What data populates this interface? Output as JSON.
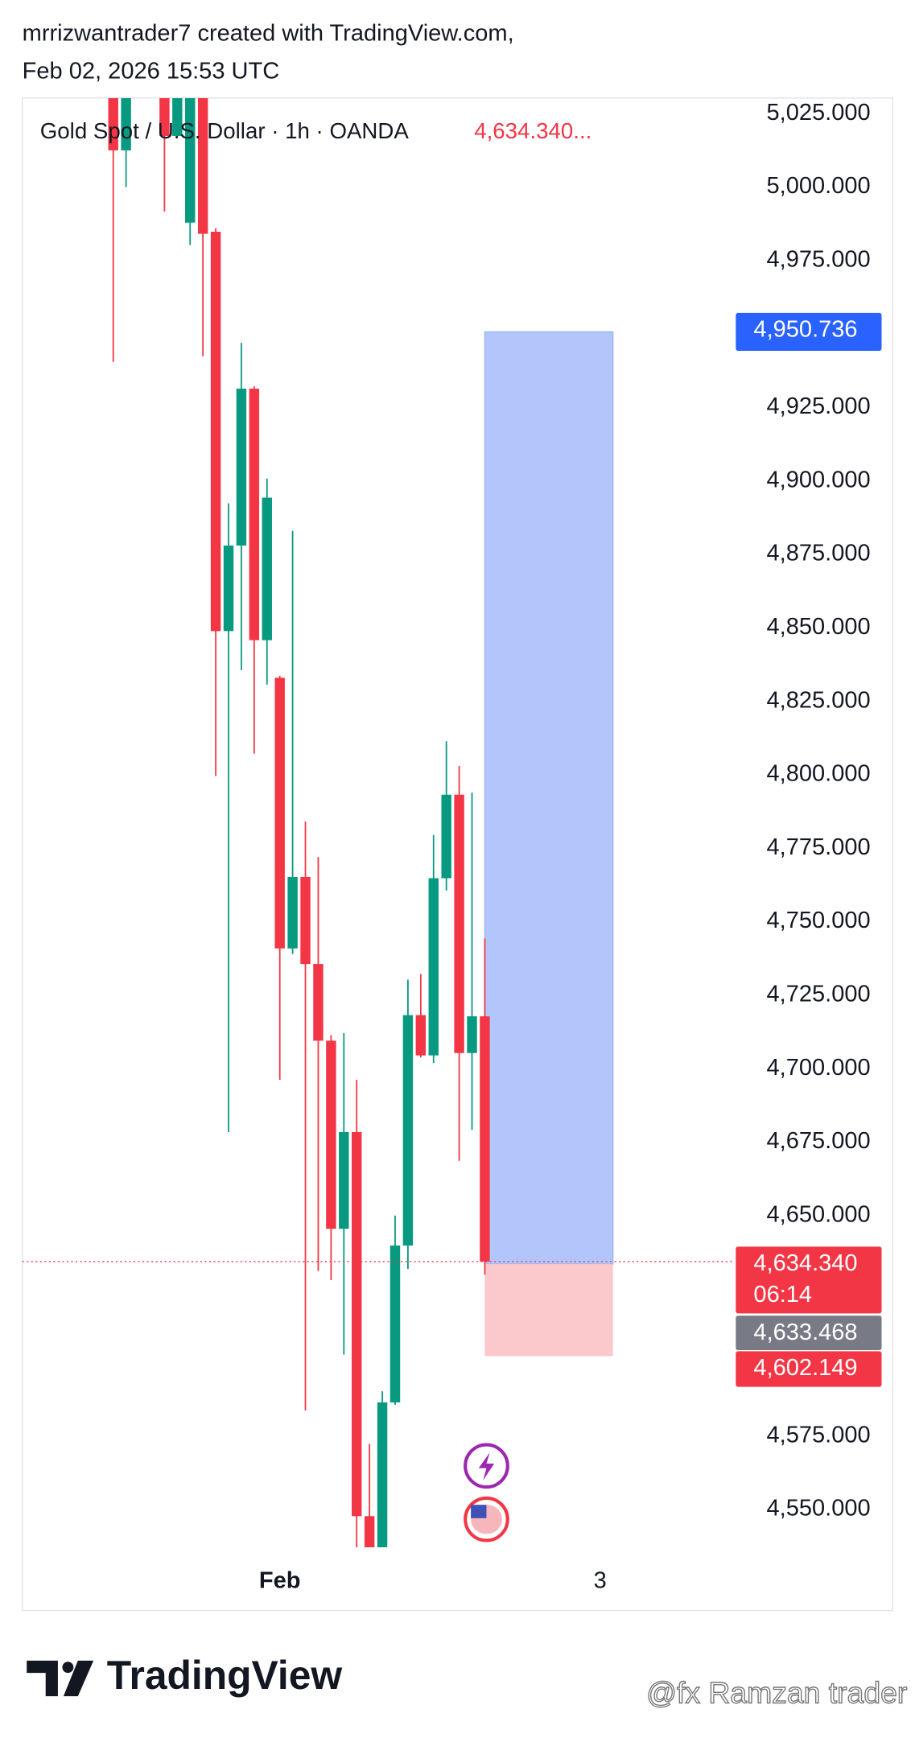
{
  "chart_data": {
    "type": "candlestick",
    "header": [
      "mrrizwantrader7 created with TradingView.com,",
      "Feb 02, 2026 15:53 UTC"
    ],
    "legend_title": "Gold Spot / U.S. Dollar · 1h · OANDA",
    "legend_value": "4,634.340...",
    "up_color": "#089981",
    "down_color": "#f23645",
    "open": [
      5030.3,
      5012.5,
      null,
      null,
      5030.3,
      5017.4,
      4987.9,
      5030.3,
      4984.8,
      4848.9,
      4878,
      4931.4,
      4845.8,
      4833,
      4740.9,
      4765.2,
      4735.6,
      4709.5,
      4645.5,
      4678.4,
      4547.7,
      4537.1,
      4586.4,
      4639.8,
      4718.2,
      4704.5,
      4764.8,
      4793.2,
      4705.3,
      4717.8
    ],
    "high": [
      5030.3,
      5030.3,
      null,
      null,
      5030.3,
      5030.3,
      5030.3,
      5030.3,
      4986,
      4892.4,
      4947,
      4932.2,
      4900.8,
      4833.7,
      4883,
      4784.1,
      4772,
      4711.4,
      4712.1,
      4696.2,
      4572.3,
      4590.2,
      4650,
      4730.3,
      4732.2,
      4779.5,
      4811.4,
      4803,
      4793.9,
      4744.3
    ],
    "low": [
      4940.5,
      5000,
      null,
      null,
      4991.7,
      5017.4,
      4980.3,
      4942.4,
      4799.6,
      4678.4,
      4835.6,
      4807.2,
      4830.7,
      4696.2,
      4739,
      4583.7,
      4631.1,
      4628,
      4602.7,
      4537.1,
      4537.1,
      4537.1,
      4585.6,
      4631.8,
      4703.8,
      4701.9,
      4760.6,
      4668.6,
      4679.2,
      4629.9
    ],
    "close": [
      5012.5,
      5030.3,
      null,
      null,
      5017.4,
      5030.3,
      5030.3,
      4984.1,
      4848.9,
      4878,
      4931.4,
      4845.8,
      4894.3,
      4740.9,
      4765.2,
      4735.6,
      4709.5,
      4645.5,
      4678.4,
      4547.7,
      4537.1,
      4586.4,
      4639.8,
      4718.2,
      4704.5,
      4764.8,
      4793.2,
      4705.3,
      4717.8,
      4634.34
    ],
    "xlim": [
      -7.1,
      48.5
    ],
    "xticks": [
      {
        "value": 13,
        "label": "Feb"
      },
      {
        "value": 38,
        "label": "3"
      }
    ],
    "ylim": [
      4536.4,
      5030.3
    ],
    "yticks": [
      {
        "value": 5025,
        "label": "5,025.000"
      },
      {
        "value": 5000,
        "label": "5,000.000"
      },
      {
        "value": 4975,
        "label": "4,975.000"
      },
      {
        "value": 4925,
        "label": "4,925.000"
      },
      {
        "value": 4900,
        "label": "4,900.000"
      },
      {
        "value": 4875,
        "label": "4,875.000"
      },
      {
        "value": 4850,
        "label": "4,850.000"
      },
      {
        "value": 4825,
        "label": "4,825.000"
      },
      {
        "value": 4800,
        "label": "4,800.000"
      },
      {
        "value": 4775,
        "label": "4,775.000"
      },
      {
        "value": 4750,
        "label": "4,750.000"
      },
      {
        "value": 4725,
        "label": "4,725.000"
      },
      {
        "value": 4700,
        "label": "4,700.000"
      },
      {
        "value": 4675,
        "label": "4,675.000"
      },
      {
        "value": 4650,
        "label": "4,650.000"
      },
      {
        "value": 4575,
        "label": "4,575.000"
      },
      {
        "value": 4550,
        "label": "4,550.000"
      }
    ],
    "position": {
      "start": 29,
      "end": 39,
      "target": {
        "value": 4950.736,
        "label": "4,950.736"
      },
      "entry": {
        "value": 4633.468,
        "label": "4,633.468"
      },
      "stop": {
        "value": 4602.149,
        "label": "4,602.149"
      }
    },
    "last_price": {
      "value": 4634.34,
      "label": "4,634.340",
      "countdown": "06:14"
    },
    "brand": "TradingView",
    "watermark": "@fx Ramzan trader"
  }
}
